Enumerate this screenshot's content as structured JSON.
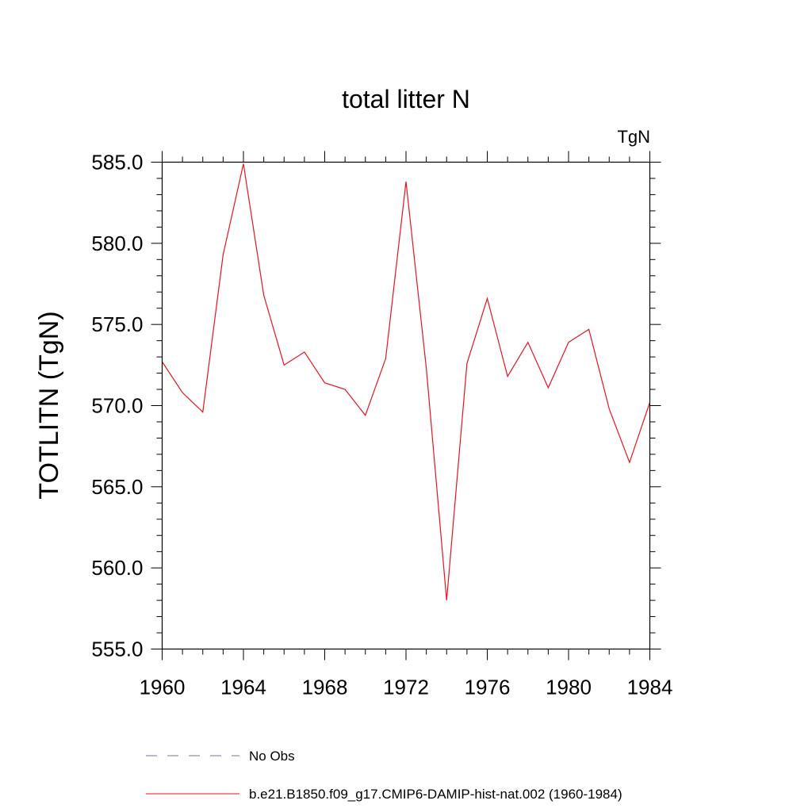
{
  "chart_data": {
    "type": "line",
    "title": "total litter N",
    "units": "TgN",
    "ylabel": "TOTLITN  (TgN)",
    "xlabel": "",
    "xlim": [
      1960,
      1984
    ],
    "ylim": [
      555,
      585
    ],
    "x_ticks": [
      1960,
      1964,
      1968,
      1972,
      1976,
      1980,
      1984
    ],
    "x_tick_labels": [
      "1960",
      "1964",
      "1968",
      "1972",
      "1976",
      "1980",
      "1984"
    ],
    "y_ticks": [
      555,
      560,
      565,
      570,
      575,
      580,
      585
    ],
    "y_tick_labels": [
      "555.0",
      "560.0",
      "565.0",
      "570.0",
      "575.0",
      "580.0",
      "585.0"
    ],
    "grid": false,
    "legend_position": "bottom",
    "series": [
      {
        "name": "b.e21.B1850.f09_g17.CMIP6-DAMIP-hist-nat.002 (1960-1984)",
        "color": "#e8141e",
        "style": "solid",
        "x": [
          1960,
          1961,
          1962,
          1963,
          1964,
          1965,
          1966,
          1967,
          1968,
          1969,
          1970,
          1971,
          1972,
          1973,
          1974,
          1975,
          1976,
          1977,
          1978,
          1979,
          1980,
          1981,
          1982,
          1983,
          1984
        ],
        "y": [
          572.7,
          570.8,
          569.6,
          579.3,
          584.9,
          576.8,
          572.5,
          573.3,
          571.4,
          571.0,
          569.4,
          572.9,
          583.8,
          572.3,
          558.0,
          572.6,
          576.6,
          571.8,
          573.9,
          571.1,
          573.9,
          574.7,
          569.8,
          566.5,
          570.2
        ]
      }
    ],
    "legend": [
      {
        "label": "No Obs",
        "color": "#7070b0",
        "style": "dashed"
      },
      {
        "label": "b.e21.B1850.f09_g17.CMIP6-DAMIP-hist-nat.002 (1960-1984)",
        "color": "#e8141e",
        "style": "solid"
      }
    ]
  }
}
